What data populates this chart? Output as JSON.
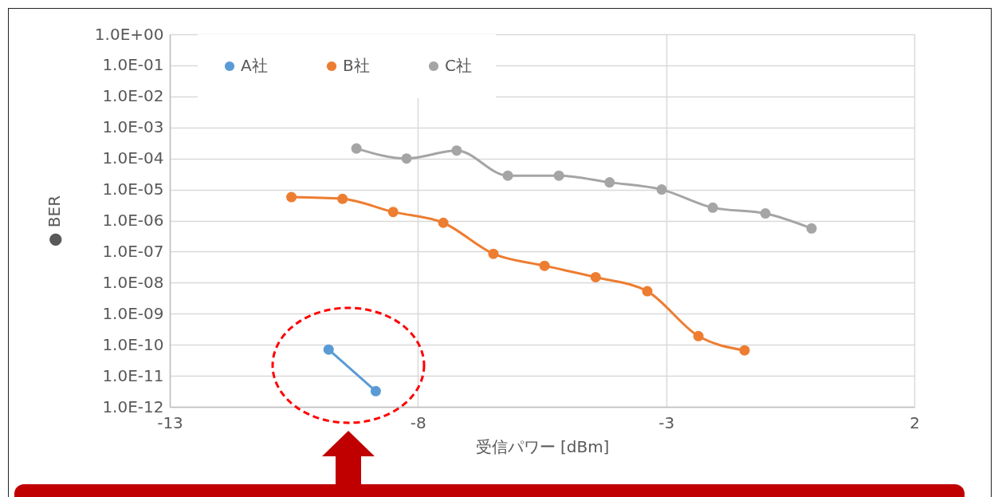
{
  "chart_data": {
    "type": "line",
    "xlabel": "受信パワー [dBm]",
    "ylabel": "● BER",
    "log": "y",
    "grid": true,
    "legend": "top",
    "marker": "circle",
    "line_style": "solid",
    "xlim": [
      -13,
      2
    ],
    "xticks": [
      -13,
      -8,
      -3,
      2
    ],
    "ylim": [
      1e-12,
      1
    ],
    "yticks": [
      {
        "value": 1,
        "label": "1.0E+00"
      },
      {
        "value": 0.1,
        "label": "1.0E-01"
      },
      {
        "value": 0.01,
        "label": "1.0E-02"
      },
      {
        "value": 0.001,
        "label": "1.0E-03"
      },
      {
        "value": 0.0001,
        "label": "1.0E-04"
      },
      {
        "value": 1e-05,
        "label": "1.0E-05"
      },
      {
        "value": 1e-06,
        "label": "1.0E-06"
      },
      {
        "value": 1e-07,
        "label": "1.0E-07"
      },
      {
        "value": 1e-08,
        "label": "1.0E-08"
      },
      {
        "value": 1e-09,
        "label": "1.0E-09"
      },
      {
        "value": 1e-10,
        "label": "1.0E-10"
      },
      {
        "value": 1e-11,
        "label": "1.0E-11"
      },
      {
        "value": 1e-12,
        "label": "1.0E-12"
      }
    ],
    "series": [
      {
        "name": "A社",
        "color": "#5b9bd5",
        "x": [
          -9.8,
          -8.85
        ],
        "values": [
          7e-11,
          3.2e-12
        ]
      },
      {
        "name": "B社",
        "color": "#ed7d31",
        "x": [
          -10.55,
          -9.52,
          -8.5,
          -7.49,
          -6.48,
          -5.45,
          -4.42,
          -3.38,
          -2.35,
          -1.42
        ],
        "values": [
          5.7e-06,
          5e-06,
          1.9e-06,
          8.5e-07,
          8.5e-08,
          3.5e-08,
          1.5e-08,
          5.3e-09,
          1.9e-10,
          6.6e-11
        ]
      },
      {
        "name": "C社",
        "color": "#a5a5a5",
        "x": [
          -9.24,
          -8.23,
          -7.22,
          -6.19,
          -5.16,
          -4.14,
          -3.09,
          -2.06,
          -1.0,
          -0.07
        ],
        "values": [
          0.00021,
          0.0001,
          0.00018,
          2.8e-05,
          2.8e-05,
          1.7e-05,
          1e-05,
          2.6e-06,
          1.7e-06,
          5.6e-07
        ]
      }
    ]
  }
}
